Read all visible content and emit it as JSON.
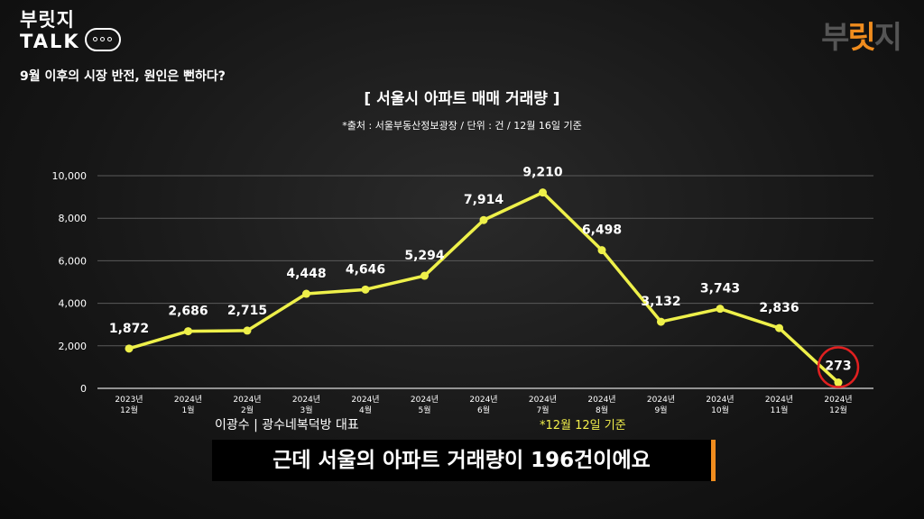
{
  "brand": {
    "line1": "부릿지",
    "line2": "TALK",
    "episode": "9월 이후의 시장 반전, 원인은 뻔하다?"
  },
  "logo": {
    "part1": "부",
    "part2": "릿",
    "part3": "지"
  },
  "chart_data": {
    "type": "line",
    "title": "[ 서울시 아파트 매매 거래량 ]",
    "subtitle": "*출처 : 서울부동산정보광장 / 단위 : 건 / 12월 16일 기준",
    "categories": [
      [
        "2023년",
        "12월"
      ],
      [
        "2024년",
        "1월"
      ],
      [
        "2024년",
        "2월"
      ],
      [
        "2024년",
        "3월"
      ],
      [
        "2024년",
        "4월"
      ],
      [
        "2024년",
        "5월"
      ],
      [
        "2024년",
        "6월"
      ],
      [
        "2024년",
        "7월"
      ],
      [
        "2024년",
        "8월"
      ],
      [
        "2024년",
        "9월"
      ],
      [
        "2024년",
        "10월"
      ],
      [
        "2024년",
        "11월"
      ],
      [
        "2024년",
        "12월"
      ]
    ],
    "values": [
      1872,
      2686,
      2715,
      4448,
      4646,
      5294,
      7914,
      9210,
      6498,
      3132,
      3743,
      2836,
      273
    ],
    "value_labels": [
      "1,872",
      "2,686",
      "2,715",
      "4,448",
      "4,646",
      "5,294",
      "7,914",
      "9,210",
      "6,498",
      "3,132",
      "3,743",
      "2,836",
      "273"
    ],
    "yticks": [
      0,
      2000,
      4000,
      6000,
      8000,
      10000
    ],
    "ytick_labels": [
      "0",
      "2,000",
      "4,000",
      "6,000",
      "8,000",
      "10,000"
    ],
    "ylim": [
      0,
      10000
    ],
    "grid": true,
    "line_color": "#eef04a",
    "highlight_index": 12,
    "highlight_color": "#e02020"
  },
  "speaker": "이광수 | 광수네복덕방 대표",
  "note": "*12월 12일 기준",
  "caption": "근데 서울의 아파트 거래량이 196건이에요"
}
